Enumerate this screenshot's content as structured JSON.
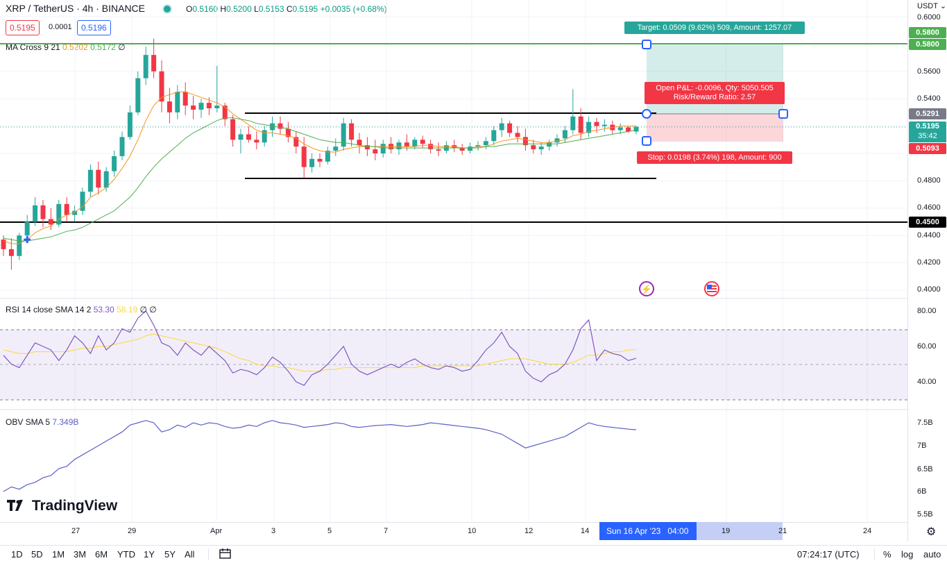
{
  "header": {
    "symbol": "XRP / TetherUS · 4h · BINANCE",
    "open_label": "O",
    "open": "0.5160",
    "high_label": "H",
    "high": "0.5200",
    "low_label": "L",
    "low": "0.5153",
    "close_label": "C",
    "close": "0.5195",
    "change": "+0.0035 (+0.68%)",
    "sell_price": "0.5195",
    "spread": "0.0001",
    "buy_price": "0.5196"
  },
  "indicators": {
    "ma": {
      "name": "MA Cross 9 21",
      "v1": "0.5202",
      "v2": "0.5172",
      "flag": "∅"
    },
    "rsi": {
      "name": "RSI 14 close SMA 14 2",
      "v1": "53.30",
      "v2": "58.19",
      "f1": "∅",
      "f2": "∅"
    },
    "obv": {
      "name": "OBV SMA 5",
      "v1": "7.349B"
    }
  },
  "price_axis": {
    "currency": "USDT",
    "ticks": [
      "0.6000",
      "0.5600",
      "0.5400",
      "0.4800",
      "0.4600",
      "0.4400",
      "0.4200",
      "0.4000"
    ],
    "tags": {
      "target_top": "0.5800",
      "target": "0.5800",
      "entry": "0.5291",
      "last": "0.5195",
      "countdown": "35:42",
      "stop": "0.5093",
      "level": "0.4500"
    }
  },
  "rsi_axis": [
    "80.00",
    "60.00",
    "40.00"
  ],
  "obv_axis": [
    "7.5B",
    "7B",
    "6.5B",
    "6B",
    "5.5B"
  ],
  "position": {
    "target_text": "Target: 0.0509 (9.62%) 509, Amount: 1257.07",
    "pnl_text": "Open P&L: -0.0096, Qty: 5050.505",
    "rr_text": "Risk/Reward Ratio: 2.57",
    "stop_text": "Stop: 0.0198 (3.74%) 198, Amount: 900"
  },
  "time_axis": {
    "ticks": [
      "27",
      "29",
      "Apr",
      "3",
      "5",
      "7",
      "10",
      "12",
      "14",
      "19",
      "21",
      "24"
    ],
    "crosshair": "Sun 16 Apr '23",
    "crosshair_time": "04:00"
  },
  "bottom": {
    "timeframes": [
      "1D",
      "5D",
      "1M",
      "3M",
      "6M",
      "YTD",
      "1Y",
      "5Y",
      "All"
    ],
    "clock": "07:24:17 (UTC)",
    "percent": "%",
    "log": "log",
    "auto": "auto"
  },
  "logo": "TradingView",
  "colors": {
    "up": "#26a69a",
    "down": "#f23645",
    "ma_fast": "#f7931a",
    "ma_slow": "#4caf50",
    "rsi": "#7e57c2",
    "rsi_ma": "#fdd835",
    "obv": "#5b5fc7"
  },
  "chart_data": {
    "type": "candlestick",
    "interval": "4h",
    "symbol": "XRP/USDT",
    "ylim": [
      0.4,
      0.6
    ],
    "candles": [
      [
        0.437,
        0.44,
        0.425,
        0.43
      ],
      [
        0.43,
        0.438,
        0.415,
        0.425
      ],
      [
        0.425,
        0.442,
        0.422,
        0.44
      ],
      [
        0.44,
        0.455,
        0.436,
        0.45
      ],
      [
        0.45,
        0.468,
        0.447,
        0.462
      ],
      [
        0.462,
        0.466,
        0.446,
        0.452
      ],
      [
        0.452,
        0.46,
        0.444,
        0.448
      ],
      [
        0.448,
        0.466,
        0.446,
        0.463
      ],
      [
        0.463,
        0.468,
        0.45,
        0.455
      ],
      [
        0.455,
        0.462,
        0.45,
        0.458
      ],
      [
        0.458,
        0.475,
        0.455,
        0.472
      ],
      [
        0.472,
        0.492,
        0.468,
        0.488
      ],
      [
        0.488,
        0.494,
        0.47,
        0.475
      ],
      [
        0.475,
        0.49,
        0.472,
        0.487
      ],
      [
        0.487,
        0.502,
        0.483,
        0.498
      ],
      [
        0.498,
        0.516,
        0.495,
        0.512
      ],
      [
        0.512,
        0.535,
        0.51,
        0.53
      ],
      [
        0.53,
        0.56,
        0.528,
        0.555
      ],
      [
        0.555,
        0.578,
        0.55,
        0.572
      ],
      [
        0.572,
        0.584,
        0.555,
        0.56
      ],
      [
        0.56,
        0.568,
        0.53,
        0.538
      ],
      [
        0.538,
        0.548,
        0.522,
        0.53
      ],
      [
        0.53,
        0.55,
        0.525,
        0.545
      ],
      [
        0.545,
        0.552,
        0.528,
        0.535
      ],
      [
        0.535,
        0.542,
        0.525,
        0.532
      ],
      [
        0.532,
        0.54,
        0.526,
        0.537
      ],
      [
        0.537,
        0.541,
        0.528,
        0.533
      ],
      [
        0.533,
        0.564,
        0.53,
        0.535
      ],
      [
        0.535,
        0.537,
        0.52,
        0.525
      ],
      [
        0.525,
        0.528,
        0.505,
        0.51
      ],
      [
        0.51,
        0.518,
        0.5,
        0.514
      ],
      [
        0.514,
        0.52,
        0.508,
        0.51
      ],
      [
        0.51,
        0.516,
        0.503,
        0.508
      ],
      [
        0.508,
        0.52,
        0.505,
        0.517
      ],
      [
        0.517,
        0.527,
        0.512,
        0.522
      ],
      [
        0.522,
        0.527,
        0.514,
        0.518
      ],
      [
        0.518,
        0.523,
        0.508,
        0.512
      ],
      [
        0.512,
        0.516,
        0.5,
        0.505
      ],
      [
        0.505,
        0.512,
        0.482,
        0.49
      ],
      [
        0.49,
        0.5,
        0.486,
        0.496
      ],
      [
        0.496,
        0.5,
        0.49,
        0.494
      ],
      [
        0.494,
        0.505,
        0.492,
        0.502
      ],
      [
        0.502,
        0.511,
        0.498,
        0.505
      ],
      [
        0.505,
        0.526,
        0.502,
        0.522
      ],
      [
        0.522,
        0.525,
        0.505,
        0.51
      ],
      [
        0.51,
        0.515,
        0.5,
        0.506
      ],
      [
        0.506,
        0.512,
        0.498,
        0.503
      ],
      [
        0.503,
        0.51,
        0.495,
        0.5
      ],
      [
        0.5,
        0.51,
        0.497,
        0.507
      ],
      [
        0.507,
        0.512,
        0.5,
        0.503
      ],
      [
        0.503,
        0.51,
        0.499,
        0.508
      ],
      [
        0.508,
        0.514,
        0.502,
        0.505
      ],
      [
        0.505,
        0.512,
        0.503,
        0.51
      ],
      [
        0.51,
        0.513,
        0.504,
        0.507
      ],
      [
        0.507,
        0.51,
        0.5,
        0.503
      ],
      [
        0.503,
        0.508,
        0.498,
        0.502
      ],
      [
        0.502,
        0.509,
        0.5,
        0.506
      ],
      [
        0.506,
        0.51,
        0.501,
        0.504
      ],
      [
        0.504,
        0.507,
        0.499,
        0.502
      ],
      [
        0.502,
        0.508,
        0.5,
        0.505
      ],
      [
        0.505,
        0.509,
        0.502,
        0.506
      ],
      [
        0.506,
        0.512,
        0.503,
        0.509
      ],
      [
        0.509,
        0.52,
        0.506,
        0.517
      ],
      [
        0.517,
        0.526,
        0.512,
        0.522
      ],
      [
        0.522,
        0.524,
        0.512,
        0.515
      ],
      [
        0.515,
        0.52,
        0.508,
        0.512
      ],
      [
        0.512,
        0.518,
        0.502,
        0.506
      ],
      [
        0.506,
        0.51,
        0.5,
        0.503
      ],
      [
        0.503,
        0.508,
        0.499,
        0.505
      ],
      [
        0.505,
        0.51,
        0.502,
        0.508
      ],
      [
        0.508,
        0.514,
        0.505,
        0.511
      ],
      [
        0.511,
        0.52,
        0.508,
        0.517
      ],
      [
        0.517,
        0.547,
        0.514,
        0.527
      ],
      [
        0.527,
        0.533,
        0.51,
        0.515
      ],
      [
        0.515,
        0.527,
        0.512,
        0.523
      ],
      [
        0.523,
        0.526,
        0.515,
        0.52
      ],
      [
        0.52,
        0.525,
        0.516,
        0.521
      ],
      [
        0.521,
        0.524,
        0.514,
        0.517
      ],
      [
        0.517,
        0.522,
        0.514,
        0.519
      ],
      [
        0.519,
        0.52,
        0.515,
        0.516
      ],
      [
        0.516,
        0.52,
        0.514,
        0.5195
      ]
    ],
    "ma_fast": [
      0.436,
      0.434,
      0.434,
      0.437,
      0.442,
      0.445,
      0.447,
      0.452,
      0.455,
      0.457,
      0.461,
      0.468,
      0.471,
      0.475,
      0.481,
      0.489,
      0.498,
      0.51,
      0.524,
      0.535,
      0.541,
      0.543,
      0.545,
      0.545,
      0.543,
      0.541,
      0.539,
      0.537,
      0.534,
      0.529,
      0.525,
      0.521,
      0.517,
      0.515,
      0.515,
      0.514,
      0.513,
      0.511,
      0.507,
      0.504,
      0.502,
      0.501,
      0.501,
      0.503,
      0.504,
      0.505,
      0.505,
      0.505,
      0.505,
      0.505,
      0.505,
      0.505,
      0.505,
      0.506,
      0.506,
      0.505,
      0.505,
      0.505,
      0.504,
      0.504,
      0.505,
      0.505,
      0.507,
      0.509,
      0.51,
      0.511,
      0.51,
      0.509,
      0.508,
      0.508,
      0.509,
      0.51,
      0.513,
      0.514,
      0.516,
      0.517,
      0.518,
      0.519,
      0.52,
      0.52,
      0.5202
    ],
    "ma_slow": [
      0.438,
      0.437,
      0.436,
      0.436,
      0.437,
      0.438,
      0.439,
      0.441,
      0.443,
      0.444,
      0.446,
      0.449,
      0.452,
      0.455,
      0.458,
      0.463,
      0.468,
      0.475,
      0.483,
      0.49,
      0.496,
      0.501,
      0.506,
      0.511,
      0.515,
      0.518,
      0.521,
      0.524,
      0.526,
      0.526,
      0.525,
      0.524,
      0.522,
      0.521,
      0.52,
      0.519,
      0.518,
      0.516,
      0.514,
      0.512,
      0.51,
      0.509,
      0.508,
      0.508,
      0.507,
      0.506,
      0.505,
      0.505,
      0.504,
      0.504,
      0.504,
      0.504,
      0.504,
      0.504,
      0.504,
      0.504,
      0.504,
      0.504,
      0.504,
      0.504,
      0.504,
      0.505,
      0.505,
      0.506,
      0.507,
      0.507,
      0.507,
      0.507,
      0.507,
      0.507,
      0.507,
      0.508,
      0.509,
      0.51,
      0.511,
      0.512,
      0.513,
      0.514,
      0.515,
      0.516,
      0.5172
    ],
    "rsi": [
      55,
      50,
      48,
      55,
      62,
      60,
      58,
      52,
      58,
      66,
      62,
      56,
      66,
      58,
      62,
      70,
      68,
      76,
      80,
      72,
      62,
      60,
      55,
      62,
      58,
      55,
      60,
      56,
      52,
      45,
      47,
      46,
      44,
      48,
      54,
      51,
      46,
      40,
      38,
      44,
      46,
      50,
      55,
      60,
      50,
      46,
      44,
      46,
      48,
      50,
      48,
      51,
      53,
      50,
      48,
      47,
      49,
      48,
      46,
      47,
      52,
      58,
      62,
      68,
      60,
      56,
      46,
      42,
      40,
      44,
      46,
      50,
      58,
      70,
      75,
      52,
      58,
      56,
      55,
      52,
      53.3
    ],
    "rsi_ma": [
      58,
      57,
      56,
      56,
      57,
      57,
      57,
      57,
      57,
      58,
      59,
      59,
      60,
      60,
      61,
      62,
      63,
      64,
      66,
      67,
      66,
      65,
      64,
      63,
      62,
      61,
      60,
      59,
      57,
      55,
      53,
      52,
      50,
      49,
      49,
      48,
      48,
      47,
      46,
      46,
      46,
      47,
      47,
      48,
      48,
      48,
      48,
      48,
      48,
      48,
      48,
      48,
      48,
      49,
      49,
      49,
      49,
      49,
      49,
      49,
      49,
      50,
      51,
      52,
      53,
      53,
      53,
      52,
      51,
      50,
      50,
      50,
      51,
      53,
      55,
      55,
      56,
      57,
      57,
      58,
      58.19
    ],
    "obv": [
      6.0,
      6.1,
      6.05,
      6.15,
      6.2,
      6.3,
      6.35,
      6.5,
      6.55,
      6.7,
      6.8,
      6.9,
      7.0,
      7.1,
      7.2,
      7.3,
      7.45,
      7.5,
      7.55,
      7.5,
      7.3,
      7.35,
      7.45,
      7.4,
      7.5,
      7.45,
      7.5,
      7.48,
      7.42,
      7.38,
      7.4,
      7.45,
      7.42,
      7.5,
      7.55,
      7.5,
      7.48,
      7.45,
      7.4,
      7.42,
      7.44,
      7.46,
      7.5,
      7.48,
      7.42,
      7.4,
      7.42,
      7.44,
      7.45,
      7.46,
      7.44,
      7.42,
      7.44,
      7.46,
      7.5,
      7.48,
      7.46,
      7.44,
      7.42,
      7.4,
      7.38,
      7.35,
      7.3,
      7.25,
      7.15,
      7.05,
      6.95,
      7.0,
      7.05,
      7.1,
      7.15,
      7.2,
      7.3,
      7.4,
      7.5,
      7.45,
      7.42,
      7.4,
      7.38,
      7.36,
      7.349
    ]
  }
}
